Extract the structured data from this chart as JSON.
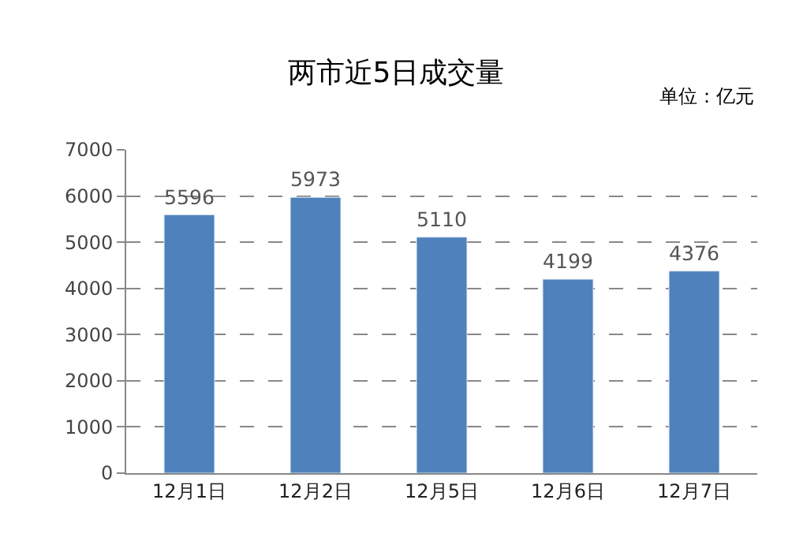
{
  "chart_data": {
    "type": "bar",
    "title": "两市近5日成交量",
    "annotations": [
      "单位：亿元"
    ],
    "categories": [
      "12月1日",
      "12月2日",
      "12月5日",
      "12月6日",
      "12月7日"
    ],
    "values": [
      5596,
      5973,
      5110,
      4199,
      4376
    ],
    "color": "#4f81bd",
    "ylim": [
      0,
      7000
    ],
    "yticks": [
      0,
      1000,
      2000,
      3000,
      4000,
      5000,
      6000,
      7000
    ],
    "grid": "y",
    "data_labels": true
  }
}
